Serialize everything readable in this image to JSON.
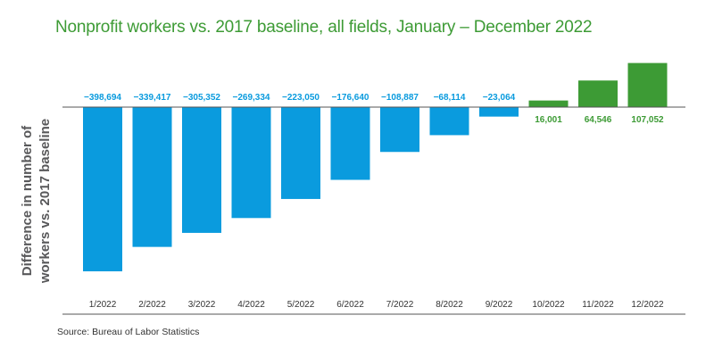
{
  "chart_data": {
    "type": "bar",
    "title": "Nonprofit workers vs. 2017 baseline, all fields, January – December 2022",
    "xlabel": "",
    "ylabel": "Difference in number of workers vs. 2017 baseline",
    "categories": [
      "1/2022",
      "2/2022",
      "3/2022",
      "4/2022",
      "5/2022",
      "6/2022",
      "7/2022",
      "8/2022",
      "9/2022",
      "10/2022",
      "11/2022",
      "12/2022"
    ],
    "values": [
      -398694,
      -339417,
      -305352,
      -269334,
      -223050,
      -176640,
      -108887,
      -68114,
      -23064,
      16001,
      64546,
      107052
    ],
    "value_labels": [
      "−398,694",
      "−339,417",
      "−305,352",
      "−269,334",
      "−223,050",
      "−176,640",
      "−108,887",
      "−68,114",
      "−23,064",
      "16,001",
      "64,546",
      "107,052"
    ],
    "ylim": [
      -498000,
      136000
    ],
    "grid": false,
    "legend": "none",
    "colors": {
      "negative": "#0a9bde",
      "positive": "#3d9b35",
      "axis": "#555555"
    },
    "source": "Source: Bureau of Labor Statistics"
  }
}
